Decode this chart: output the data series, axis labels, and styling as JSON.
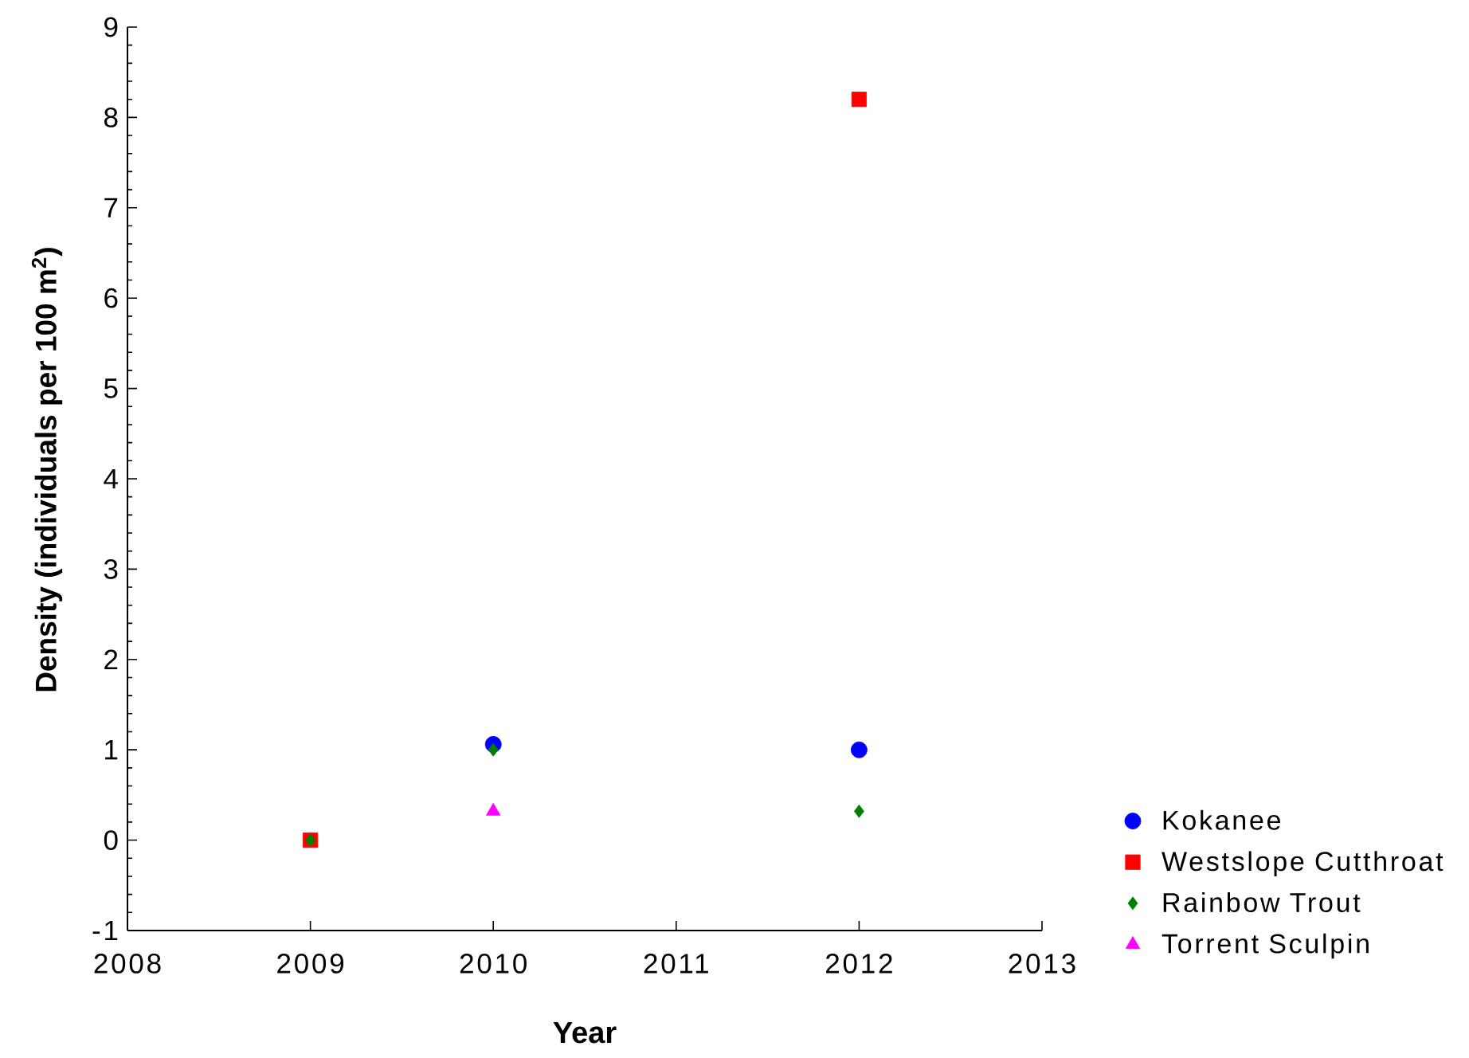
{
  "chart_data": {
    "type": "scatter",
    "xlabel": "Year",
    "ylabel": "Density (individuals per 100 m$^{2}$)",
    "xlim": [
      2008,
      2013
    ],
    "xticks": [
      2008,
      2009,
      2010,
      2011,
      2012,
      2013
    ],
    "ylim": [
      -1,
      9
    ],
    "yticks": [
      -1,
      0,
      1,
      2,
      3,
      4,
      5,
      6,
      7,
      8,
      9
    ],
    "legend": "bottom right",
    "series": [
      {
        "name": "Kokanee",
        "color": "#0000ff",
        "marker": "circle",
        "x": [
          2010,
          2012
        ],
        "values": [
          1.06,
          1.0
        ]
      },
      {
        "name": "Westslope Cutthroat",
        "color": "#ff0000",
        "marker": "square",
        "x": [
          2009,
          2012
        ],
        "values": [
          0,
          8.2
        ]
      },
      {
        "name": "Rainbow Trout",
        "color": "#008000",
        "marker": "diamond",
        "x": [
          2009,
          2010,
          2012
        ],
        "values": [
          0,
          1.0,
          0.32
        ]
      },
      {
        "name": "Torrent Sculpin",
        "color": "#ff00ff",
        "marker": "triangle",
        "x": [
          2010
        ],
        "values": [
          0.32
        ]
      }
    ]
  }
}
